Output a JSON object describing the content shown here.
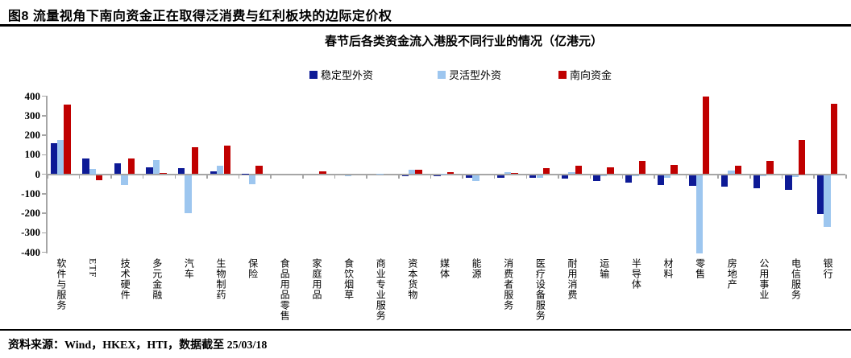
{
  "figure": {
    "title": "图8  流量视角下南向资金正在取得泛消费与红利板块的边际定价权",
    "source": "资料来源：Wind，HKEX，HTI，数据截至 25/03/18"
  },
  "chart_data": {
    "type": "bar",
    "title": "春节后各类资金流入港股不同行业的情况（亿港元）",
    "categories": [
      "软件与服务",
      "ETF",
      "技术硬件",
      "多元金融",
      "汽车",
      "生物制药",
      "保险",
      "食品用品零售",
      "家庭用品",
      "食饮烟草",
      "商业专业服务",
      "资本货物",
      "媒体",
      "能源",
      "消费者服务",
      "医疗设备服务",
      "耐用消费",
      "运输",
      "半导体",
      "材料",
      "零售",
      "房地产",
      "公用事业",
      "电信服务",
      "银行"
    ],
    "series": [
      {
        "name": "稳定型外资",
        "color": "#0d1a96",
        "values": [
          160,
          80,
          55,
          36,
          30,
          15,
          3,
          0,
          0,
          0,
          0,
          -5,
          -8,
          -15,
          -16,
          -16,
          -20,
          -30,
          -38,
          -50,
          -55,
          -58,
          -70,
          -78,
          -200
        ]
      },
      {
        "name": "灵活型外资",
        "color": "#9dc6ef",
        "values": [
          175,
          25,
          -50,
          72,
          -195,
          42,
          -48,
          0,
          0,
          -5,
          3,
          22,
          2,
          -32,
          11,
          -13,
          12,
          -3,
          -5,
          -14,
          -400,
          19,
          -2,
          -10,
          -265
        ]
      },
      {
        "name": "南向资金",
        "color": "#c00000",
        "values": [
          355,
          -25,
          80,
          6,
          140,
          145,
          42,
          0,
          15,
          0,
          0,
          23,
          10,
          0,
          5,
          30,
          44,
          36,
          66,
          47,
          397,
          44,
          67,
          175,
          360
        ]
      }
    ],
    "ylim": [
      -400,
      400
    ],
    "ytick_step": 100,
    "legend_position": "top",
    "grid": false,
    "axis_color": "#a6a6a6"
  }
}
